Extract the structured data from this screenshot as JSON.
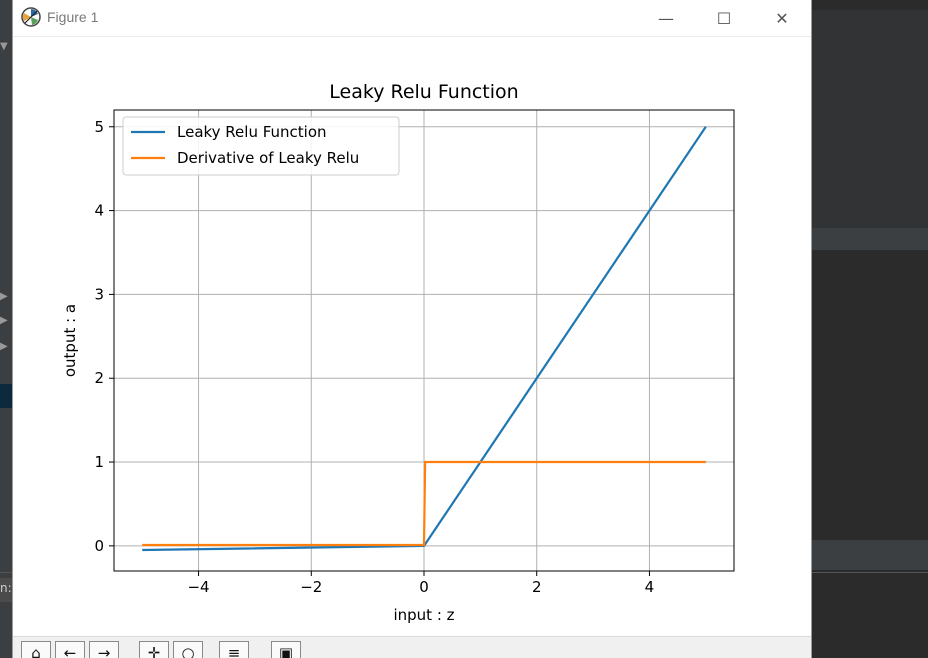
{
  "window": {
    "title": "Figure 1",
    "minimize_label": "—",
    "maximize_label": "☐",
    "close_label": "✕"
  },
  "toolbar": {
    "buttons": [
      {
        "name": "home",
        "icon": "home-icon",
        "glyph": "⌂"
      },
      {
        "name": "back",
        "icon": "back-arrow-icon",
        "glyph": "←"
      },
      {
        "name": "forward",
        "icon": "forward-arrow-icon",
        "glyph": "→"
      },
      {
        "name": "pan",
        "icon": "pan-move-icon",
        "glyph": "✛"
      },
      {
        "name": "zoom",
        "icon": "zoom-icon",
        "glyph": "○"
      },
      {
        "name": "configure",
        "icon": "subplots-config-icon",
        "glyph": "≡"
      },
      {
        "name": "save",
        "icon": "save-icon",
        "glyph": "▣"
      }
    ]
  },
  "background": {
    "side_label": "n:"
  },
  "chart_data": {
    "type": "line",
    "title": "Leaky Relu Function",
    "xlabel": "input : z",
    "ylabel": "output : a",
    "xlim": [
      -5.5,
      5.5
    ],
    "ylim": [
      -0.3,
      5.2
    ],
    "xticks": [
      -4,
      -2,
      0,
      2,
      4
    ],
    "xtick_labels": [
      "−4",
      "−2",
      "0",
      "2",
      "4"
    ],
    "yticks": [
      0,
      1,
      2,
      3,
      4,
      5
    ],
    "ytick_labels": [
      "0",
      "1",
      "2",
      "3",
      "4",
      "5"
    ],
    "grid": true,
    "legend_position": "top-left",
    "series": [
      {
        "name": "Leaky Relu Function",
        "color": "#1f77b4",
        "x": [
          -5,
          0,
          5
        ],
        "y": [
          -0.05,
          0,
          5
        ]
      },
      {
        "name": "Derivative of Leaky Relu",
        "color": "#ff7f0e",
        "x": [
          -5,
          0,
          0.02,
          5
        ],
        "y": [
          0.01,
          0.01,
          1,
          1
        ]
      }
    ]
  }
}
